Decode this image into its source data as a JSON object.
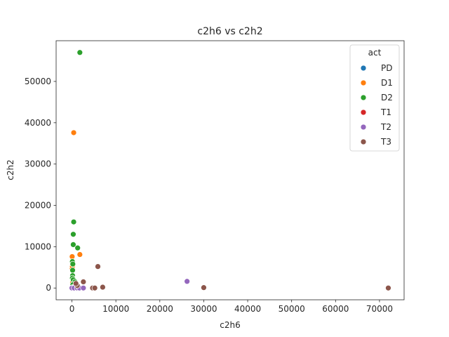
{
  "chart_data": {
    "type": "scatter",
    "title": "c2h6 vs c2h2",
    "xlabel": "c2h6",
    "ylabel": "c2h2",
    "xlim": [
      -3600,
      75600
    ],
    "ylim": [
      -2850,
      59850
    ],
    "xticks": [
      0,
      10000,
      20000,
      30000,
      40000,
      50000,
      60000,
      70000
    ],
    "yticks": [
      0,
      10000,
      20000,
      30000,
      40000,
      50000
    ],
    "legend": {
      "title": "act",
      "placement": "top-right"
    },
    "series": [
      {
        "name": "PD",
        "color": "#1f77b4",
        "points": [
          [
            50,
            30
          ],
          [
            120,
            60
          ],
          [
            300,
            20
          ]
        ]
      },
      {
        "name": "D1",
        "color": "#ff7f0e",
        "points": [
          [
            400,
            37600
          ],
          [
            1800,
            8100
          ],
          [
            50,
            7600
          ],
          [
            20,
            4700
          ],
          [
            100,
            5200
          ],
          [
            150,
            1300
          ],
          [
            300,
            800
          ],
          [
            80,
            200
          ],
          [
            500,
            100
          ],
          [
            1000,
            50
          ],
          [
            200,
            400
          ],
          [
            600,
            300
          ]
        ]
      },
      {
        "name": "D2",
        "color": "#2ca02c",
        "points": [
          [
            1800,
            57000
          ],
          [
            400,
            16000
          ],
          [
            300,
            13000
          ],
          [
            300,
            10500
          ],
          [
            1300,
            9700
          ],
          [
            100,
            6400
          ],
          [
            200,
            5800
          ],
          [
            150,
            4300
          ],
          [
            150,
            3000
          ],
          [
            100,
            2400
          ],
          [
            300,
            2000
          ],
          [
            700,
            1500
          ],
          [
            200,
            800
          ],
          [
            1100,
            400
          ],
          [
            400,
            200
          ],
          [
            80,
            100
          ]
        ]
      },
      {
        "name": "T1",
        "color": "#d62728",
        "points": [
          [
            200,
            30
          ],
          [
            900,
            50
          ],
          [
            1500,
            20
          ]
        ]
      },
      {
        "name": "T2",
        "color": "#9467bd",
        "points": [
          [
            26200,
            1600
          ],
          [
            0,
            0
          ],
          [
            500,
            0
          ],
          [
            1200,
            0
          ],
          [
            1700,
            0
          ],
          [
            2600,
            0
          ]
        ]
      },
      {
        "name": "T3",
        "color": "#8c564b",
        "points": [
          [
            5900,
            5200
          ],
          [
            2600,
            1500
          ],
          [
            7000,
            200
          ],
          [
            4700,
            0
          ],
          [
            5200,
            0
          ],
          [
            30000,
            100
          ],
          [
            72000,
            0
          ],
          [
            1200,
            600
          ],
          [
            900,
            1100
          ]
        ]
      }
    ]
  }
}
